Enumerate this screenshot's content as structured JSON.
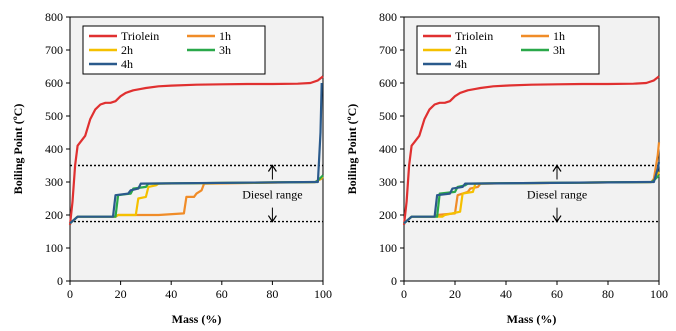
{
  "chart_data": [
    {
      "type": "line",
      "xlabel": "Mass (%)",
      "ylabel": "Boiling Point (ºC)",
      "xlim": [
        0,
        100
      ],
      "ylim": [
        0,
        800
      ],
      "xticks": [
        "0",
        "20",
        "40",
        "60",
        "80",
        "100"
      ],
      "yticks": [
        "0",
        "100",
        "200",
        "300",
        "400",
        "500",
        "600",
        "700",
        "800"
      ],
      "grid": false,
      "plot_background": "#f2f2f2",
      "legend_position": "top",
      "series": [
        {
          "name": "Triolein",
          "color": "#e03030",
          "x": [
            0,
            1,
            2,
            3,
            4,
            6,
            8,
            10,
            12,
            14,
            16,
            18,
            20,
            22,
            25,
            28,
            30,
            35,
            40,
            50,
            60,
            70,
            80,
            90,
            95,
            98,
            100
          ],
          "y": [
            170,
            240,
            350,
            410,
            420,
            440,
            490,
            520,
            535,
            540,
            540,
            545,
            560,
            570,
            578,
            582,
            585,
            590,
            592,
            595,
            596,
            597,
            597,
            598,
            600,
            608,
            620
          ]
        },
        {
          "name": "1h",
          "color": "#f08c28",
          "x": [
            0,
            3,
            18,
            19,
            35,
            45,
            46,
            49,
            50,
            52,
            53,
            97,
            98,
            99.5
          ],
          "y": [
            175,
            195,
            195,
            200,
            200,
            205,
            255,
            255,
            265,
            275,
            295,
            300,
            305,
            310
          ]
        },
        {
          "name": "2h",
          "color": "#f5c000",
          "x": [
            0,
            3,
            18,
            19,
            26,
            27,
            30,
            31,
            34,
            35,
            97,
            98,
            100
          ],
          "y": [
            175,
            195,
            195,
            200,
            200,
            250,
            255,
            285,
            290,
            295,
            300,
            305,
            315
          ]
        },
        {
          "name": "3h",
          "color": "#2aa84a",
          "x": [
            0,
            3,
            18,
            19,
            24,
            25,
            30,
            31,
            97,
            98,
            100
          ],
          "y": [
            175,
            195,
            195,
            260,
            265,
            280,
            285,
            295,
            300,
            305,
            320
          ]
        },
        {
          "name": "4h",
          "color": "#2a5a8c",
          "x": [
            0,
            3,
            17,
            18,
            23,
            24,
            27,
            28,
            97,
            98,
            99,
            99.5
          ],
          "y": [
            175,
            195,
            195,
            260,
            265,
            275,
            280,
            295,
            300,
            300,
            450,
            600
          ]
        }
      ],
      "annotations": {
        "range_label": "Diesel range",
        "upper_line": 350,
        "lower_line": 180,
        "arrow_x": 80
      }
    },
    {
      "type": "line",
      "xlabel": "Mass (%)",
      "ylabel": "Boiling Point (ºC)",
      "xlim": [
        0,
        100
      ],
      "ylim": [
        0,
        800
      ],
      "xticks": [
        "0",
        "20",
        "40",
        "60",
        "80",
        "100"
      ],
      "yticks": [
        "0",
        "100",
        "200",
        "300",
        "400",
        "500",
        "600",
        "700",
        "800"
      ],
      "grid": false,
      "plot_background": "#f2f2f2",
      "legend_position": "top",
      "series": [
        {
          "name": "Triolein",
          "color": "#e03030",
          "x": [
            0,
            1,
            2,
            3,
            4,
            6,
            8,
            10,
            12,
            14,
            16,
            18,
            20,
            22,
            25,
            28,
            30,
            35,
            40,
            50,
            60,
            70,
            80,
            90,
            95,
            98,
            100
          ],
          "y": [
            170,
            240,
            350,
            410,
            420,
            440,
            490,
            520,
            535,
            540,
            540,
            545,
            560,
            570,
            578,
            582,
            585,
            590,
            592,
            595,
            596,
            597,
            597,
            598,
            600,
            608,
            620
          ]
        },
        {
          "name": "1h",
          "color": "#f08c28",
          "x": [
            0,
            3,
            12,
            13,
            20,
            21,
            25,
            26,
            29,
            30,
            97,
            98,
            99.5,
            100
          ],
          "y": [
            175,
            195,
            195,
            200,
            205,
            260,
            270,
            280,
            285,
            295,
            300,
            310,
            380,
            420
          ]
        },
        {
          "name": "2h",
          "color": "#f5c000",
          "x": [
            0,
            3,
            15,
            16,
            22,
            23,
            27,
            28,
            97,
            98,
            100
          ],
          "y": [
            175,
            195,
            195,
            200,
            210,
            265,
            270,
            295,
            300,
            305,
            330
          ]
        },
        {
          "name": "3h",
          "color": "#2aa84a",
          "x": [
            0,
            3,
            13,
            14,
            20,
            21,
            24,
            25,
            97,
            98,
            100
          ],
          "y": [
            175,
            195,
            195,
            265,
            270,
            285,
            290,
            295,
            300,
            305,
            320
          ]
        },
        {
          "name": "4h",
          "color": "#2a5a8c",
          "x": [
            0,
            3,
            12,
            13,
            18,
            19,
            23,
            24,
            97,
            98,
            99.5,
            100
          ],
          "y": [
            175,
            195,
            195,
            260,
            265,
            280,
            285,
            295,
            300,
            300,
            340,
            360
          ]
        }
      ],
      "annotations": {
        "range_label": "Diesel range",
        "upper_line": 350,
        "lower_line": 180,
        "arrow_x": 60
      }
    }
  ]
}
